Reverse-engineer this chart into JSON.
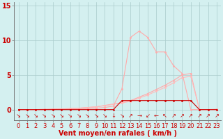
{
  "background_color": "#d4f0f0",
  "grid_color": "#aacccc",
  "axis_color": "#777777",
  "text_color": "#cc0000",
  "line_color_peak": "#ffaaaa",
  "line_color_dark": "#cc0000",
  "line_color_rise1": "#ffaaaa",
  "line_color_rise2": "#ffbbbb",
  "xlabel": "Vent moyen/en rafales ( km/h )",
  "xlim": [
    -0.5,
    23.5
  ],
  "ylim": [
    -1.5,
    15.5
  ],
  "yticks": [
    0,
    5,
    10,
    15
  ],
  "xticks": [
    0,
    1,
    2,
    3,
    4,
    5,
    6,
    7,
    8,
    9,
    10,
    11,
    12,
    13,
    14,
    15,
    16,
    17,
    18,
    19,
    20,
    21,
    22,
    23
  ],
  "curve_peak_x": [
    0,
    1,
    2,
    3,
    4,
    5,
    6,
    7,
    8,
    9,
    10,
    11,
    12,
    13,
    14,
    15,
    16,
    17,
    18,
    19,
    20,
    21,
    22,
    23
  ],
  "curve_peak_y": [
    0.0,
    0.0,
    0.0,
    0.05,
    0.05,
    0.1,
    0.1,
    0.15,
    0.15,
    0.2,
    0.3,
    0.5,
    3.0,
    10.4,
    11.3,
    10.4,
    8.3,
    8.3,
    6.3,
    5.2,
    0.0,
    0.0,
    0.0,
    0.05
  ],
  "curve_dark_x": [
    0,
    1,
    2,
    3,
    4,
    5,
    6,
    7,
    8,
    9,
    10,
    11,
    12,
    13,
    14,
    15,
    16,
    17,
    18,
    19,
    20,
    21,
    22,
    23
  ],
  "curve_dark_y": [
    0.0,
    0.0,
    0.0,
    0.0,
    0.0,
    0.0,
    0.0,
    0.0,
    0.0,
    0.0,
    0.0,
    0.0,
    1.3,
    1.3,
    1.3,
    1.3,
    1.3,
    1.3,
    1.3,
    1.3,
    1.3,
    0.0,
    0.0,
    0.0
  ],
  "curve_rise1_x": [
    0,
    1,
    2,
    3,
    4,
    5,
    6,
    7,
    8,
    9,
    10,
    11,
    12,
    13,
    14,
    15,
    16,
    17,
    18,
    19,
    20,
    21,
    22,
    23
  ],
  "curve_rise1_y": [
    0.0,
    0.0,
    0.0,
    0.0,
    0.05,
    0.1,
    0.15,
    0.2,
    0.3,
    0.4,
    0.6,
    0.8,
    1.0,
    1.3,
    1.8,
    2.3,
    2.9,
    3.5,
    4.2,
    5.0,
    5.2,
    0.0,
    0.0,
    0.0
  ],
  "curve_rise2_x": [
    0,
    1,
    2,
    3,
    4,
    5,
    6,
    7,
    8,
    9,
    10,
    11,
    12,
    13,
    14,
    15,
    16,
    17,
    18,
    19,
    20,
    21,
    22,
    23
  ],
  "curve_rise2_y": [
    0.0,
    0.0,
    0.0,
    0.0,
    0.05,
    0.1,
    0.15,
    0.2,
    0.3,
    0.4,
    0.55,
    0.75,
    0.95,
    1.2,
    1.65,
    2.1,
    2.65,
    3.2,
    3.85,
    4.6,
    4.8,
    0.0,
    0.0,
    0.0
  ],
  "arrows": [
    "↘",
    "↘",
    "↘",
    "↘",
    "↘",
    "↘",
    "↘",
    "↘",
    "↘",
    "↘",
    "↘",
    "↓",
    "↘",
    "↗",
    "→",
    "↙",
    "←",
    "↖",
    "↗",
    "↗",
    "↗",
    "↗",
    "↗",
    "↗"
  ],
  "font_size_label": 7,
  "font_size_tick": 6,
  "font_size_arrow": 6
}
